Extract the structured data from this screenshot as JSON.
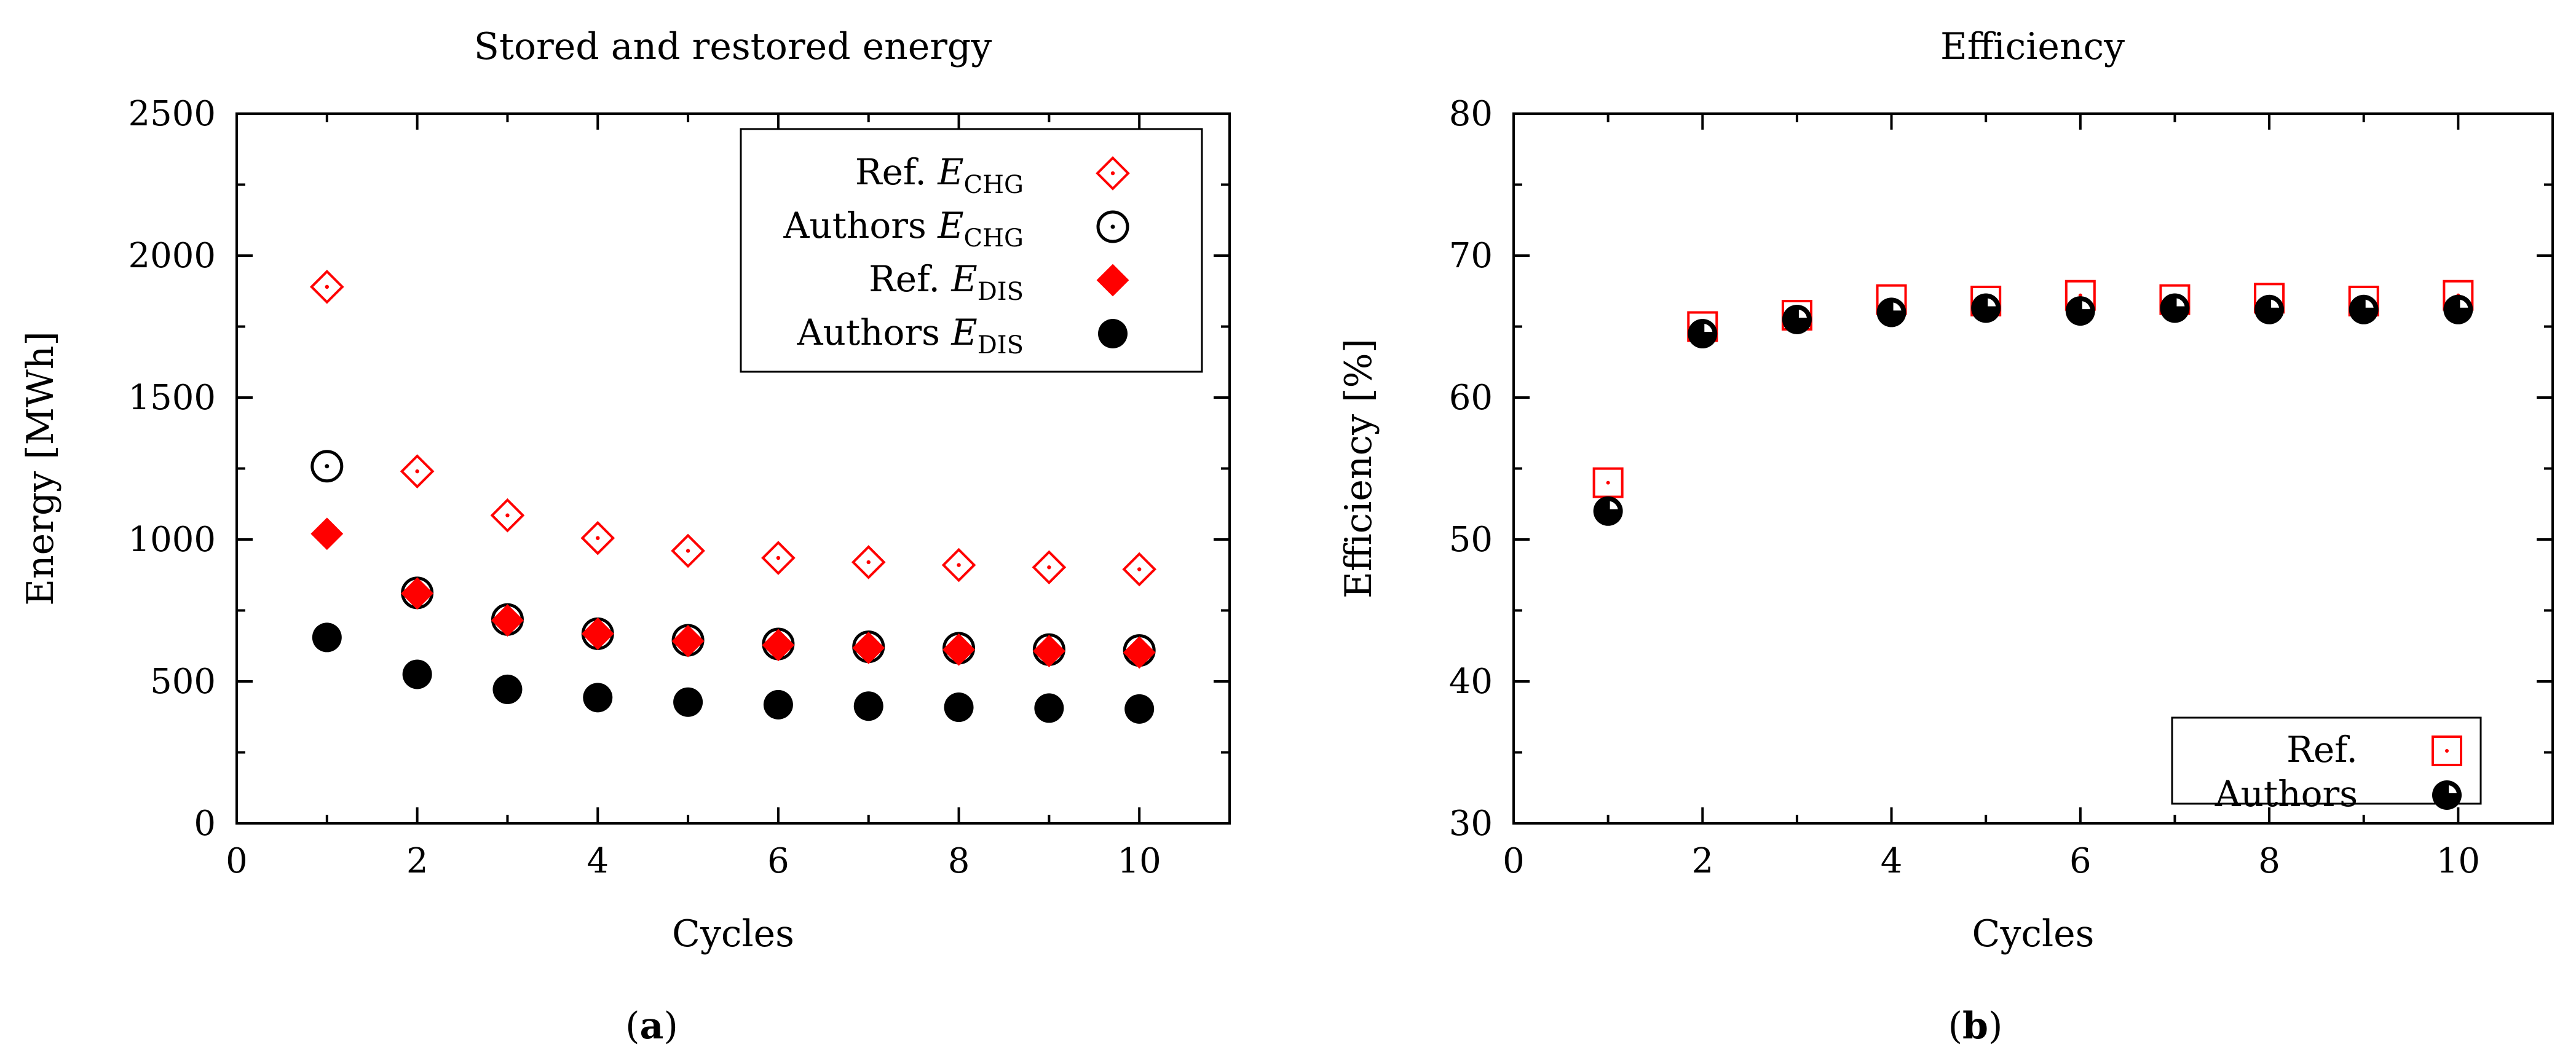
{
  "colors": {
    "ref": "#ff0000",
    "authors": "#000000",
    "background": "#ffffff"
  },
  "chart_data": [
    {
      "panel": "(a)",
      "panel_prefix": "(",
      "panel_letter": "a",
      "panel_suffix": ")",
      "type": "scatter",
      "title": "Stored and restored energy",
      "xlabel": "Cycles",
      "ylabel": "Energy [MWh]",
      "xlim": [
        0,
        11
      ],
      "ylim": [
        0,
        2500
      ],
      "xticks": [
        0,
        2,
        4,
        6,
        8,
        10
      ],
      "yticks": [
        0,
        500,
        1000,
        1500,
        2000,
        2500
      ],
      "grid": false,
      "legend_position": "top-right",
      "x": [
        1,
        2,
        3,
        4,
        5,
        6,
        7,
        8,
        9,
        10
      ],
      "series": [
        {
          "name": "Ref. E_CHG",
          "legend_prefix": "Ref.",
          "legend_symbol": "E",
          "legend_subscript": "CHG",
          "marker": "diamond-open-dot",
          "color": "#ff0000",
          "values": [
            1890,
            1240,
            1085,
            1005,
            960,
            935,
            920,
            910,
            902,
            895
          ]
        },
        {
          "name": "Authors E_CHG",
          "legend_prefix": "Authors",
          "legend_symbol": "E",
          "legend_subscript": "CHG",
          "marker": "circle-open-dot",
          "color": "#000000",
          "values": [
            1258,
            812,
            718,
            668,
            645,
            632,
            622,
            617,
            612,
            609
          ]
        },
        {
          "name": "Ref. E_DIS",
          "legend_prefix": "Ref.",
          "legend_symbol": "E",
          "legend_subscript": "DIS",
          "marker": "diamond-filled",
          "color": "#ff0000",
          "values": [
            1020,
            810,
            715,
            668,
            642,
            628,
            618,
            612,
            607,
            602
          ]
        },
        {
          "name": "Authors E_DIS",
          "legend_prefix": "Authors",
          "legend_symbol": "E",
          "legend_subscript": "DIS",
          "marker": "circle-filled",
          "color": "#000000",
          "values": [
            655,
            525,
            472,
            443,
            427,
            418,
            413,
            409,
            406,
            403
          ]
        }
      ]
    },
    {
      "panel": "(b)",
      "panel_prefix": "(",
      "panel_letter": "b",
      "panel_suffix": ")",
      "type": "scatter",
      "title": "Efficiency",
      "xlabel": "Cycles",
      "ylabel": "Efficiency [%]",
      "xlim": [
        0,
        11
      ],
      "ylim": [
        30,
        80
      ],
      "xticks": [
        0,
        2,
        4,
        6,
        8,
        10
      ],
      "yticks": [
        30,
        40,
        50,
        60,
        70,
        80
      ],
      "grid": false,
      "legend_position": "bottom-right",
      "x": [
        1,
        2,
        3,
        4,
        5,
        6,
        7,
        8,
        9,
        10
      ],
      "series": [
        {
          "name": "Ref.",
          "legend_prefix": "Ref.",
          "marker": "square-open-dot",
          "color": "#ff0000",
          "values": [
            54.0,
            65.0,
            65.8,
            66.9,
            66.8,
            67.2,
            66.9,
            67.0,
            66.8,
            67.2
          ]
        },
        {
          "name": "Authors",
          "legend_prefix": "Authors",
          "marker": "circle-halffilled",
          "color": "#000000",
          "values": [
            52.0,
            64.5,
            65.5,
            66.0,
            66.3,
            66.1,
            66.3,
            66.2,
            66.2,
            66.2
          ]
        }
      ]
    }
  ]
}
